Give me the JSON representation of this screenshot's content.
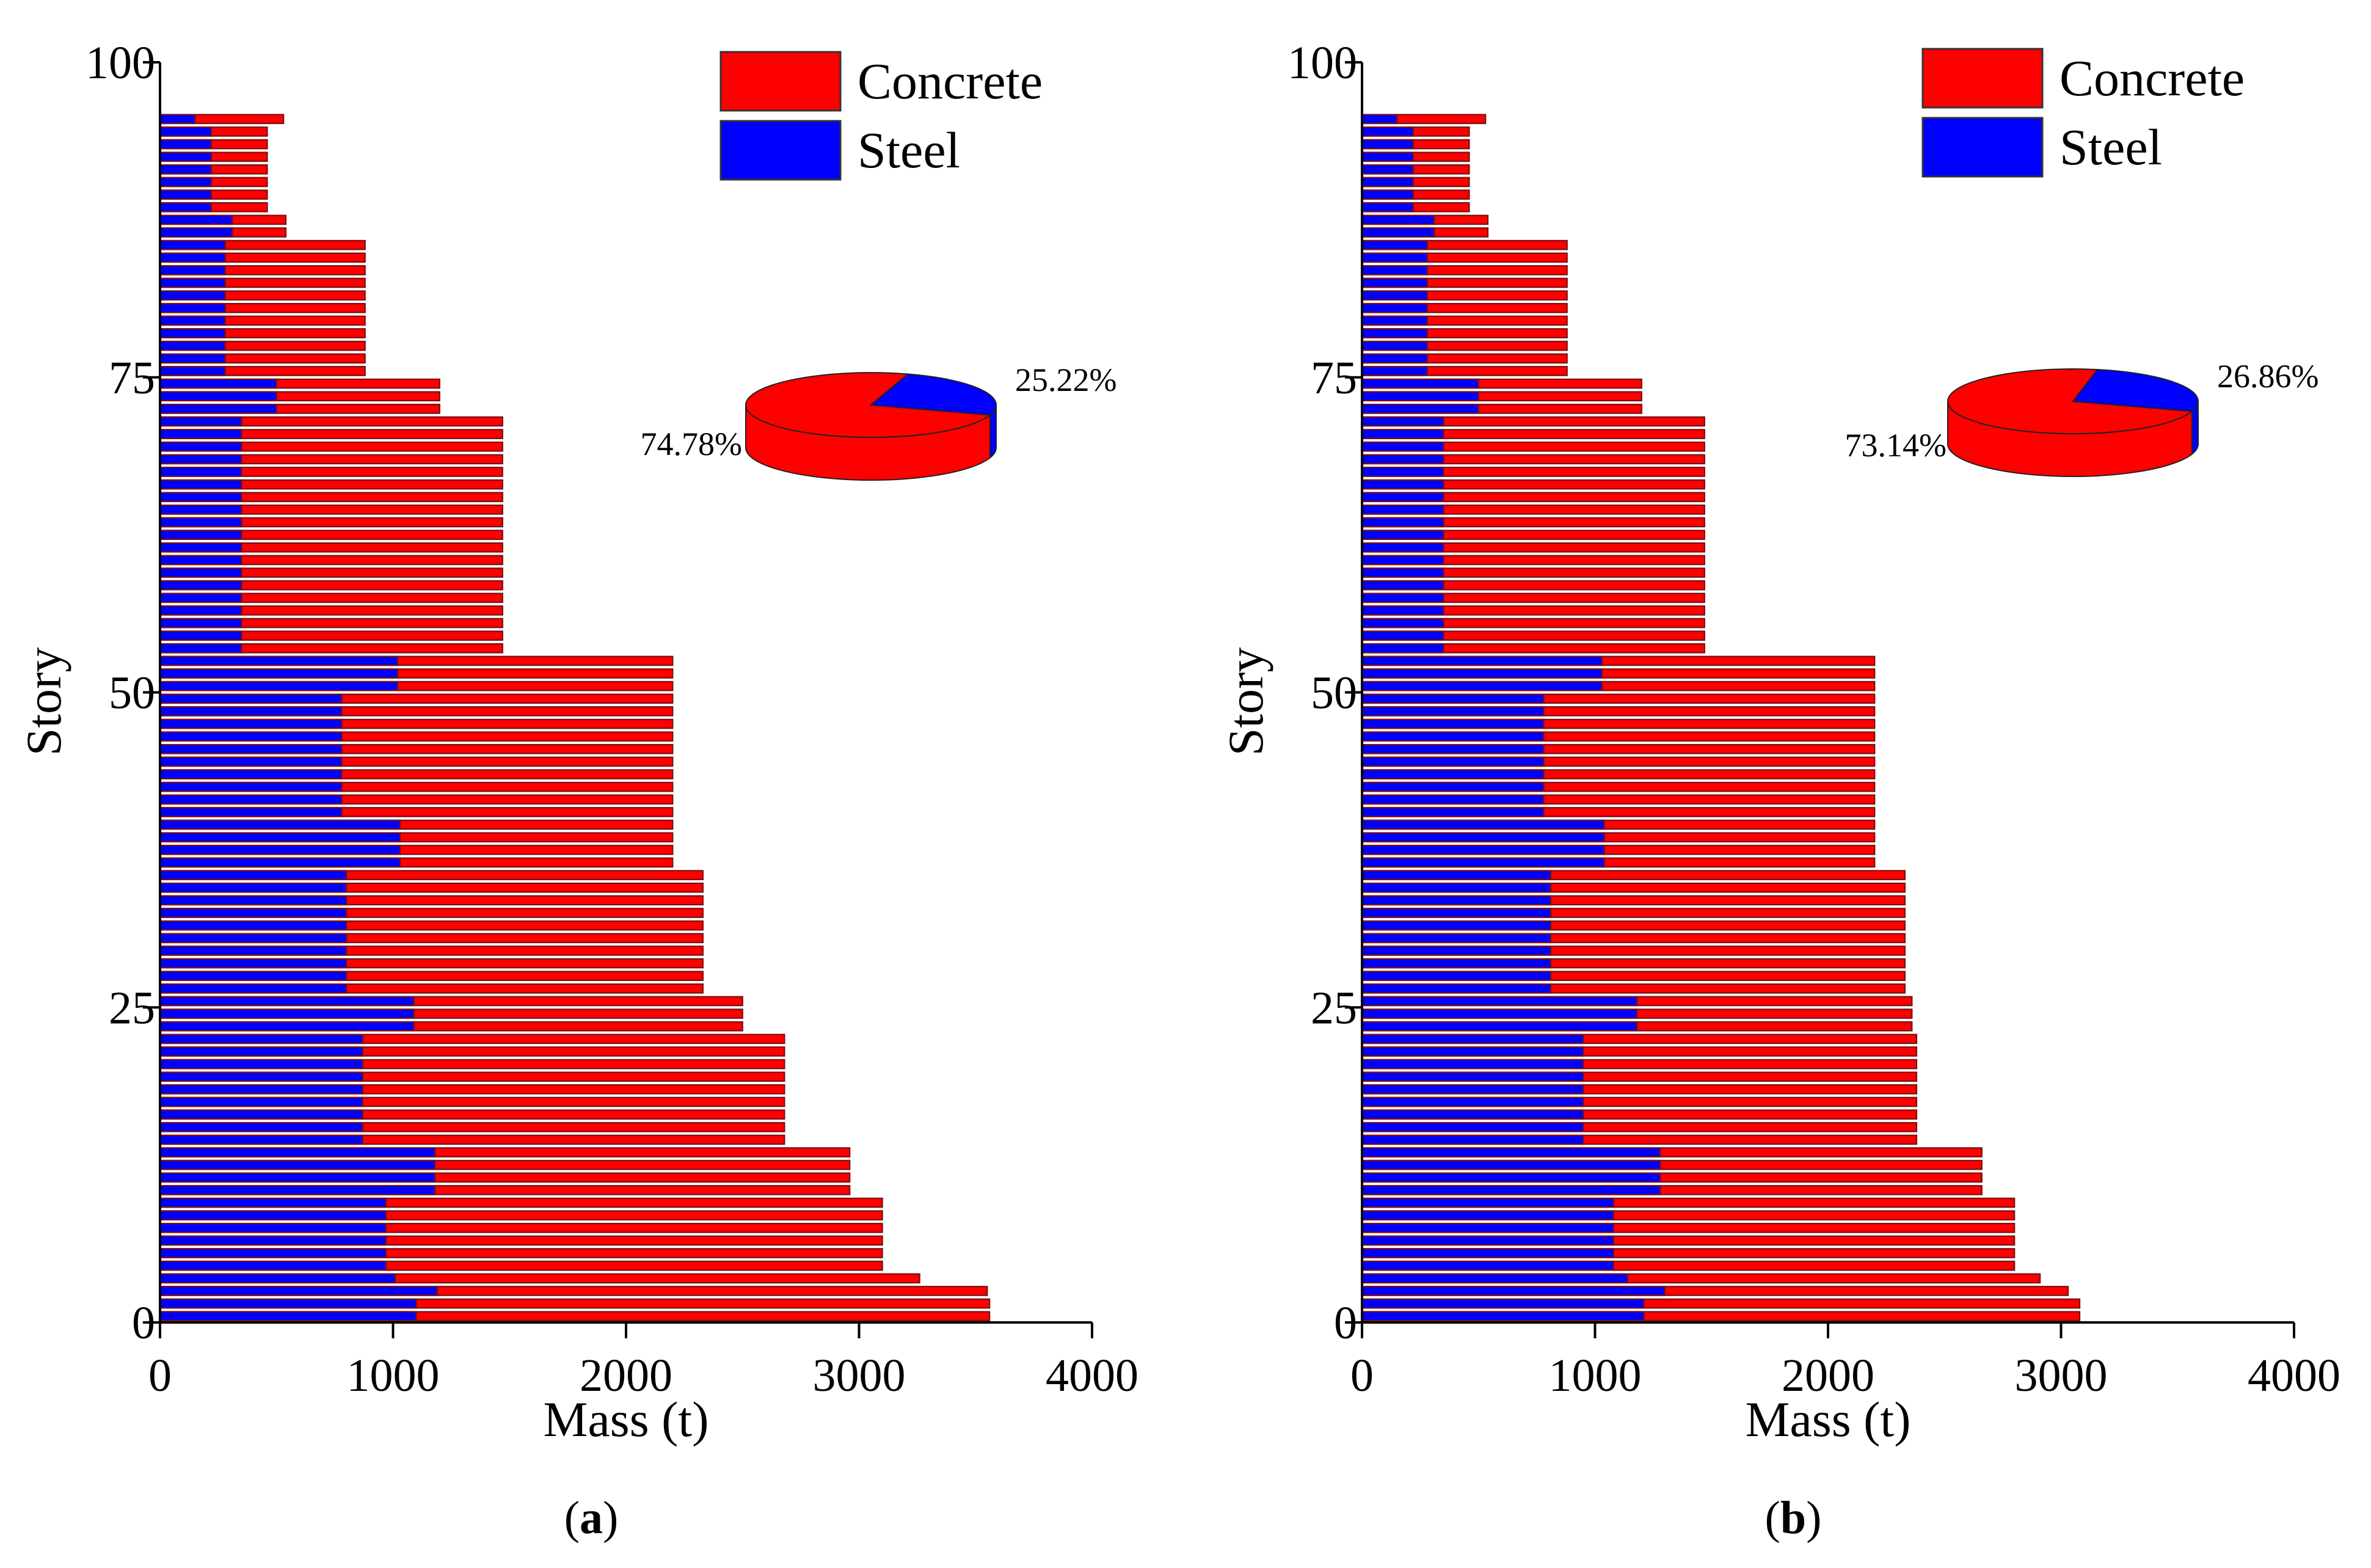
{
  "chart_data": [
    {
      "panel_label": "a",
      "type": "bar",
      "orientation": "horizontal",
      "stacking": "overlay",
      "xlabel": "Mass (t)",
      "ylabel": "Story",
      "xlim": [
        0,
        4000
      ],
      "ylim": [
        0,
        100
      ],
      "xticks": [
        "0",
        "1000",
        "2000",
        "3000",
        "4000"
      ],
      "yticks": [
        "0",
        "25",
        "50",
        "75",
        "100"
      ],
      "legend_position": "top-right",
      "legend": [
        {
          "name": "Concrete",
          "color": "#ff0000"
        },
        {
          "name": "Steel",
          "color": "#0000ff"
        }
      ],
      "bar_edge_color": "#7a1010",
      "series": [
        {
          "name": "Concrete",
          "color": "#ff0000",
          "segments": [
            {
              "from_story": 1,
              "to_story": 2,
              "value": 3560
            },
            {
              "from_story": 3,
              "to_story": 3,
              "value": 3550
            },
            {
              "from_story": 4,
              "to_story": 4,
              "value": 3260
            },
            {
              "from_story": 5,
              "to_story": 10,
              "value": 3100
            },
            {
              "from_story": 11,
              "to_story": 14,
              "value": 2960
            },
            {
              "from_story": 15,
              "to_story": 23,
              "value": 2680
            },
            {
              "from_story": 24,
              "to_story": 26,
              "value": 2500
            },
            {
              "from_story": 27,
              "to_story": 36,
              "value": 2330
            },
            {
              "from_story": 37,
              "to_story": 53,
              "value": 2200
            },
            {
              "from_story": 54,
              "to_story": 72,
              "value": 1470
            },
            {
              "from_story": 73,
              "to_story": 75,
              "value": 1200
            },
            {
              "from_story": 76,
              "to_story": 86,
              "value": 880
            },
            {
              "from_story": 87,
              "to_story": 88,
              "value": 540
            },
            {
              "from_story": 89,
              "to_story": 95,
              "value": 460
            },
            {
              "from_story": 96,
              "to_story": 96,
              "value": 530
            }
          ]
        },
        {
          "name": "Steel",
          "color": "#0000ff",
          "segments": [
            {
              "from_story": 1,
              "to_story": 2,
              "value": 1100
            },
            {
              "from_story": 3,
              "to_story": 3,
              "value": 1190
            },
            {
              "from_story": 4,
              "to_story": 4,
              "value": 1010
            },
            {
              "from_story": 5,
              "to_story": 10,
              "value": 970
            },
            {
              "from_story": 11,
              "to_story": 14,
              "value": 1180
            },
            {
              "from_story": 15,
              "to_story": 23,
              "value": 870
            },
            {
              "from_story": 24,
              "to_story": 26,
              "value": 1090
            },
            {
              "from_story": 27,
              "to_story": 36,
              "value": 800
            },
            {
              "from_story": 37,
              "to_story": 40,
              "value": 1030
            },
            {
              "from_story": 41,
              "to_story": 50,
              "value": 780
            },
            {
              "from_story": 51,
              "to_story": 53,
              "value": 1020
            },
            {
              "from_story": 54,
              "to_story": 72,
              "value": 350
            },
            {
              "from_story": 73,
              "to_story": 75,
              "value": 500
            },
            {
              "from_story": 76,
              "to_story": 86,
              "value": 280
            },
            {
              "from_story": 87,
              "to_story": 88,
              "value": 310
            },
            {
              "from_story": 89,
              "to_story": 95,
              "value": 220
            },
            {
              "from_story": 96,
              "to_story": 96,
              "value": 150
            }
          ]
        }
      ],
      "pie": {
        "type": "pie",
        "labels": [
          "Concrete",
          "Steel"
        ],
        "values": [
          74.78,
          25.22
        ],
        "value_labels": [
          "74.78%",
          "25.22%"
        ],
        "colors": [
          "#ff0000",
          "#0000ff"
        ]
      }
    },
    {
      "panel_label": "b",
      "type": "bar",
      "orientation": "horizontal",
      "stacking": "overlay",
      "xlabel": "Mass (t)",
      "ylabel": "Story",
      "xlim": [
        0,
        4000
      ],
      "ylim": [
        0,
        100
      ],
      "xticks": [
        "0",
        "1000",
        "2000",
        "3000",
        "4000"
      ],
      "yticks": [
        "0",
        "25",
        "50",
        "75",
        "100"
      ],
      "legend_position": "top-right",
      "legend": [
        {
          "name": "Concrete",
          "color": "#ff0000"
        },
        {
          "name": "Steel",
          "color": "#0000ff"
        }
      ],
      "bar_edge_color": "#7a1010",
      "series": [
        {
          "name": "Concrete",
          "color": "#ff0000",
          "segments": [
            {
              "from_story": 1,
              "to_story": 2,
              "value": 3080
            },
            {
              "from_story": 3,
              "to_story": 3,
              "value": 3030
            },
            {
              "from_story": 4,
              "to_story": 4,
              "value": 2910
            },
            {
              "from_story": 5,
              "to_story": 10,
              "value": 2800
            },
            {
              "from_story": 11,
              "to_story": 14,
              "value": 2660
            },
            {
              "from_story": 15,
              "to_story": 23,
              "value": 2380
            },
            {
              "from_story": 24,
              "to_story": 26,
              "value": 2360
            },
            {
              "from_story": 27,
              "to_story": 36,
              "value": 2330
            },
            {
              "from_story": 37,
              "to_story": 53,
              "value": 2200
            },
            {
              "from_story": 54,
              "to_story": 72,
              "value": 1470
            },
            {
              "from_story": 73,
              "to_story": 75,
              "value": 1200
            },
            {
              "from_story": 76,
              "to_story": 86,
              "value": 880
            },
            {
              "from_story": 87,
              "to_story": 88,
              "value": 540
            },
            {
              "from_story": 89,
              "to_story": 95,
              "value": 460
            },
            {
              "from_story": 96,
              "to_story": 96,
              "value": 530
            }
          ]
        },
        {
          "name": "Steel",
          "color": "#0000ff",
          "segments": [
            {
              "from_story": 1,
              "to_story": 2,
              "value": 1210
            },
            {
              "from_story": 3,
              "to_story": 3,
              "value": 1300
            },
            {
              "from_story": 4,
              "to_story": 4,
              "value": 1140
            },
            {
              "from_story": 5,
              "to_story": 10,
              "value": 1080
            },
            {
              "from_story": 11,
              "to_story": 14,
              "value": 1280
            },
            {
              "from_story": 15,
              "to_story": 23,
              "value": 950
            },
            {
              "from_story": 24,
              "to_story": 26,
              "value": 1180
            },
            {
              "from_story": 27,
              "to_story": 36,
              "value": 810
            },
            {
              "from_story": 37,
              "to_story": 40,
              "value": 1040
            },
            {
              "from_story": 41,
              "to_story": 50,
              "value": 780
            },
            {
              "from_story": 51,
              "to_story": 53,
              "value": 1030
            },
            {
              "from_story": 54,
              "to_story": 72,
              "value": 350
            },
            {
              "from_story": 73,
              "to_story": 75,
              "value": 500
            },
            {
              "from_story": 76,
              "to_story": 86,
              "value": 280
            },
            {
              "from_story": 87,
              "to_story": 88,
              "value": 310
            },
            {
              "from_story": 89,
              "to_story": 95,
              "value": 220
            },
            {
              "from_story": 96,
              "to_story": 96,
              "value": 150
            }
          ]
        }
      ],
      "pie": {
        "type": "pie",
        "labels": [
          "Concrete",
          "Steel"
        ],
        "values": [
          73.14,
          26.86
        ],
        "value_labels": [
          "73.14%",
          "26.86%"
        ],
        "colors": [
          "#ff0000",
          "#0000ff"
        ]
      }
    }
  ]
}
